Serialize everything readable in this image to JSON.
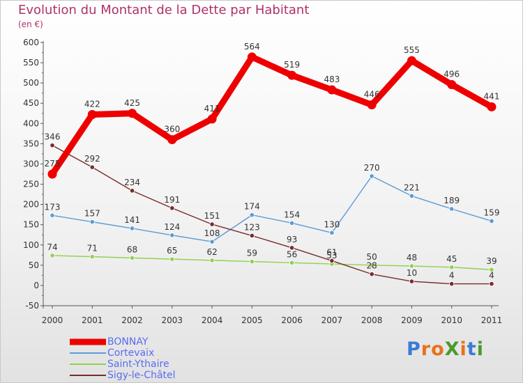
{
  "chart_data": {
    "type": "line",
    "title": "Evolution du Montant de la Dette par Habitant",
    "subtitle": "(en €)",
    "x": [
      "2000",
      "2001",
      "2002",
      "2003",
      "2004",
      "2005",
      "2006",
      "2007",
      "2008",
      "2009",
      "2010",
      "2011"
    ],
    "ylim": [
      -50,
      600
    ],
    "yticks": [
      -50,
      0,
      50,
      100,
      150,
      200,
      250,
      300,
      350,
      400,
      450,
      500,
      550,
      600
    ],
    "grid": false,
    "legend_position": "bottom-left",
    "series": [
      {
        "name": "BONNAY",
        "color": "#ee0000",
        "values": [
          275,
          422,
          425,
          360,
          411,
          564,
          519,
          483,
          446,
          555,
          496,
          441
        ]
      },
      {
        "name": "Cortevaix",
        "color": "#5b9bd5",
        "values": [
          173,
          157,
          141,
          124,
          108,
          174,
          154,
          130,
          270,
          221,
          189,
          159
        ]
      },
      {
        "name": "Saint-Ythaire",
        "color": "#92d050",
        "values": [
          74,
          71,
          68,
          65,
          62,
          59,
          56,
          53,
          50,
          48,
          45,
          39
        ]
      },
      {
        "name": "Sigy-le-Châtel",
        "color": "#7b2a2a",
        "values": [
          346,
          292,
          234,
          191,
          151,
          123,
          93,
          61,
          28,
          10,
          4,
          4
        ]
      }
    ]
  },
  "logo": {
    "text": "ProXiti",
    "letters": [
      "P",
      "r",
      "o",
      "X",
      "i",
      "t",
      "i"
    ],
    "colors": [
      "#3a7bd5",
      "#e8711c",
      "#e8711c",
      "#4a9a2a",
      "#e8711c",
      "#3a7bd5",
      "#4a9a2a"
    ]
  }
}
